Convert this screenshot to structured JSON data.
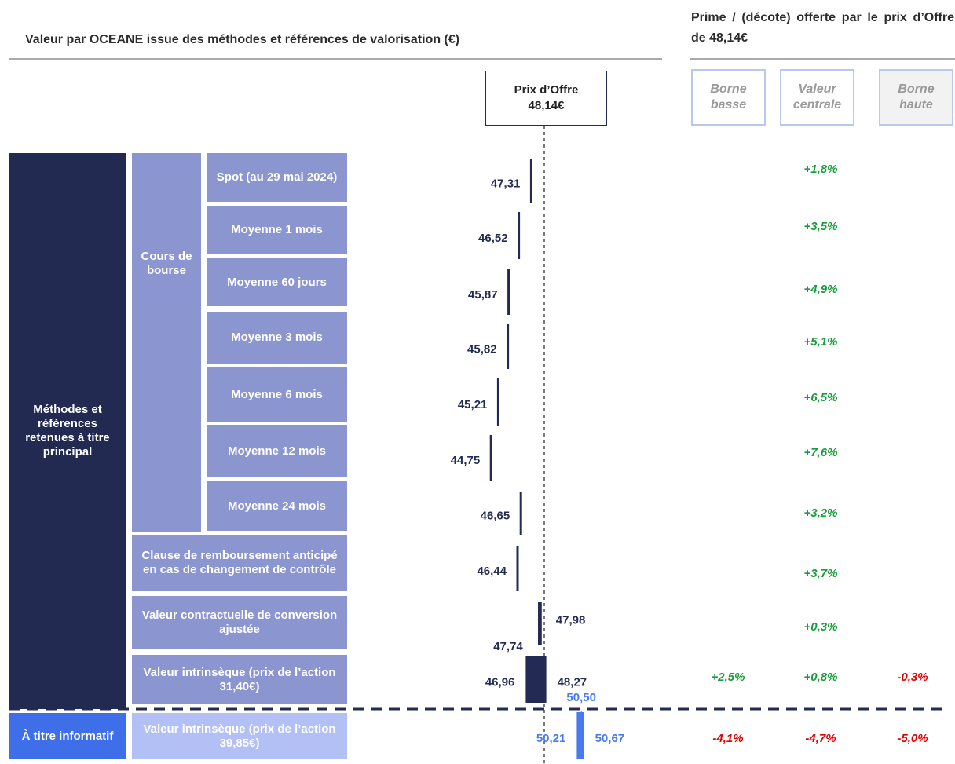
{
  "title": "Valeur par OCEANE issue des méthodes et références de valorisation (€)",
  "premium_title": "Prime / (décote) offerte par le prix d’Offre de 48,14€",
  "offer": {
    "label": "Prix d’Offre",
    "value": 48.14,
    "value_label": "48,14€"
  },
  "premium_columns": [
    "Borne basse",
    "Valeur centrale",
    "Borne haute"
  ],
  "sections": [
    {
      "label": "Méthodes et références retenues à titre principal",
      "subgroup": "Cours de bourse",
      "rows": [
        {
          "label": "Spot (au 29 mai 2024)",
          "values": [
            47.31
          ],
          "value_labels": [
            "47,31"
          ],
          "premiums": [
            null,
            {
              "value": 1.8,
              "label": "+1,8%"
            },
            null
          ]
        },
        {
          "label": "Moyenne 1 mois",
          "values": [
            46.52
          ],
          "value_labels": [
            "46,52"
          ],
          "premiums": [
            null,
            {
              "value": 3.5,
              "label": "+3,5%"
            },
            null
          ]
        },
        {
          "label": "Moyenne 60 jours",
          "values": [
            45.87
          ],
          "value_labels": [
            "45,87"
          ],
          "premiums": [
            null,
            {
              "value": 4.9,
              "label": "+4,9%"
            },
            null
          ]
        },
        {
          "label": "Moyenne 3 mois",
          "values": [
            45.82
          ],
          "value_labels": [
            "45,82"
          ],
          "premiums": [
            null,
            {
              "value": 5.1,
              "label": "+5,1%"
            },
            null
          ]
        },
        {
          "label": "Moyenne 6 mois",
          "values": [
            45.21
          ],
          "value_labels": [
            "45,21"
          ],
          "premiums": [
            null,
            {
              "value": 6.5,
              "label": "+6,5%"
            },
            null
          ]
        },
        {
          "label": "Moyenne 12 mois",
          "values": [
            44.75
          ],
          "value_labels": [
            "44,75"
          ],
          "premiums": [
            null,
            {
              "value": 7.6,
              "label": "+7,6%"
            },
            null
          ]
        },
        {
          "label": "Moyenne 24 mois",
          "values": [
            46.65
          ],
          "value_labels": [
            "46,65"
          ],
          "premiums": [
            null,
            {
              "value": 3.2,
              "label": "+3,2%"
            },
            null
          ]
        },
        {
          "label": "Clause de remboursement anticipé en cas de changement de contrôle",
          "values": [
            46.44
          ],
          "value_labels": [
            "46,44"
          ],
          "premiums": [
            null,
            {
              "value": 3.7,
              "label": "+3,7%"
            },
            null
          ]
        },
        {
          "label": "Valeur contractuelle de conversion ajustée",
          "values": [
            47.74,
            47.98
          ],
          "value_labels": [
            "47,74",
            "47,98"
          ],
          "premiums": [
            null,
            {
              "value": 0.3,
              "label": "+0,3%"
            },
            null
          ]
        },
        {
          "label": "Valeur intrinsèque (prix de l’action 31,40€)",
          "values": [
            46.96,
            48.27
          ],
          "value_labels": [
            "46,96",
            "48,27"
          ],
          "premiums": [
            {
              "value": 2.5,
              "label": "+2,5%"
            },
            {
              "value": 0.8,
              "label": "+0,8%"
            },
            {
              "value": -0.3,
              "label": "-0,3%"
            }
          ]
        }
      ]
    },
    {
      "label": "À titre informatif",
      "rows": [
        {
          "label": "Valeur intrinsèque (prix de l’action 39,85€)",
          "values": [
            50.21,
            50.67
          ],
          "value_labels": [
            "50,21",
            "50,67"
          ],
          "central": {
            "value": 50.5,
            "label": "50,50"
          },
          "premiums": [
            {
              "value": -4.1,
              "label": "-4,1%"
            },
            {
              "value": -4.7,
              "label": "-4,7%"
            },
            {
              "value": -5.0,
              "label": "-5,0%"
            }
          ]
        }
      ]
    }
  ]
}
